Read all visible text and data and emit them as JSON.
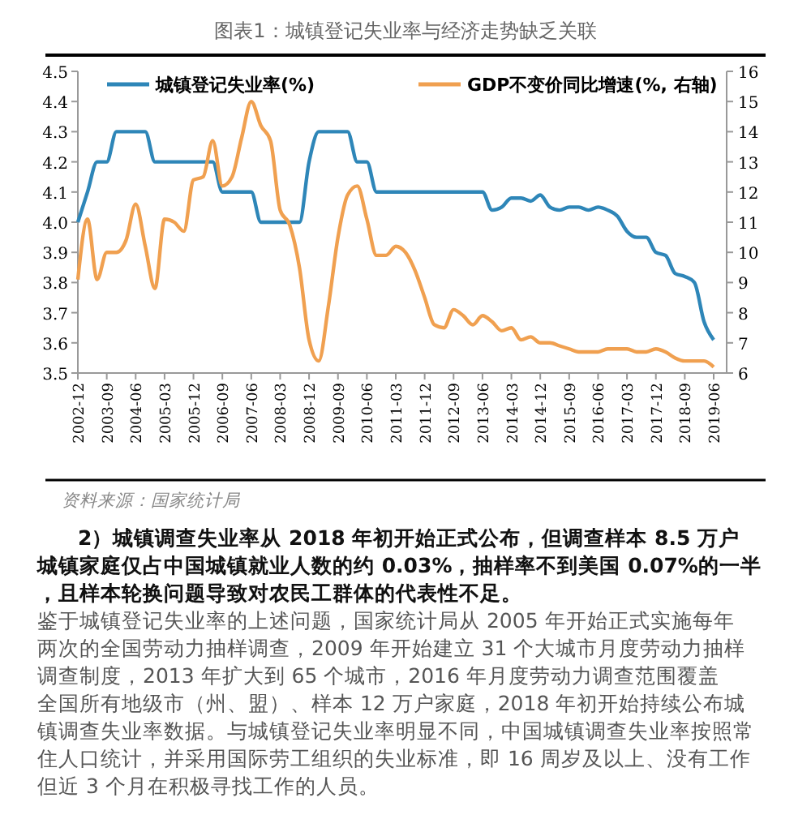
{
  "chart_data": {
    "type": "line",
    "title": "图表1：城镇登记失业率与经济走势缺乏关联",
    "categories": [
      "2002-12",
      null,
      null,
      "2003-09",
      null,
      null,
      "2004-06",
      null,
      null,
      "2005-03",
      null,
      null,
      "2005-12",
      null,
      null,
      "2006-09",
      null,
      null,
      "2007-06",
      null,
      null,
      "2008-03",
      null,
      null,
      "2008-12",
      null,
      null,
      "2009-09",
      null,
      null,
      "2010-06",
      null,
      null,
      "2011-03",
      null,
      null,
      "2011-12",
      null,
      null,
      "2012-09",
      null,
      null,
      "2013-06",
      null,
      null,
      "2014-03",
      null,
      null,
      "2014-12",
      null,
      null,
      "2015-09",
      null,
      null,
      "2016-06",
      null,
      null,
      "2017-03",
      null,
      null,
      "2017-12",
      null,
      null,
      "2018-09",
      null,
      null,
      "2019-06"
    ],
    "series": [
      {
        "name": "城镇登记失业率(%)",
        "color": "#2e86b8",
        "values": [
          4.0,
          4.1,
          4.2,
          4.2,
          4.3,
          4.3,
          4.3,
          4.3,
          4.2,
          4.2,
          4.2,
          4.2,
          4.2,
          4.2,
          4.2,
          4.1,
          4.1,
          4.1,
          4.1,
          4.0,
          4.0,
          4.0,
          4.0,
          4.0,
          4.2,
          4.3,
          4.3,
          4.3,
          4.3,
          4.2,
          4.2,
          4.1,
          4.1,
          4.1,
          4.1,
          4.1,
          4.1,
          4.1,
          4.1,
          4.1,
          4.1,
          4.1,
          4.1,
          4.04,
          4.05,
          4.08,
          4.08,
          4.07,
          4.09,
          4.05,
          4.04,
          4.05,
          4.05,
          4.04,
          4.05,
          4.04,
          4.02,
          3.97,
          3.95,
          3.95,
          3.9,
          3.89,
          3.83,
          3.82,
          3.8,
          3.67,
          3.61
        ]
      },
      {
        "name": "GDP不变价同比增速(%, 右轴)",
        "color": "#f0a050",
        "axis": "y2",
        "values": [
          9.1,
          11.1,
          9.1,
          10.0,
          10.0,
          10.4,
          11.6,
          10.2,
          8.8,
          11.1,
          11.0,
          10.7,
          12.4,
          12.5,
          13.7,
          12.2,
          12.5,
          13.8,
          15.0,
          14.2,
          13.7,
          11.4,
          10.9,
          9.5,
          7.1,
          6.4,
          8.2,
          10.5,
          11.9,
          12.2,
          11.1,
          9.9,
          9.9,
          10.2,
          10.0,
          9.4,
          8.5,
          7.6,
          7.5,
          8.1,
          7.9,
          7.6,
          7.9,
          7.7,
          7.4,
          7.5,
          7.1,
          7.2,
          7.0,
          7.0,
          6.9,
          6.8,
          6.7,
          6.7,
          6.7,
          6.8,
          6.8,
          6.8,
          6.7,
          6.7,
          6.8,
          6.7,
          6.5,
          6.4,
          6.4,
          6.4,
          6.2
        ]
      }
    ],
    "ylim": [
      3.5,
      4.5
    ],
    "yticks": [
      3.5,
      3.6,
      3.7,
      3.8,
      3.9,
      {
        "value": 4.0,
        "label": "4.0"
      },
      4.1,
      4.2,
      4.3,
      4.4,
      4.5
    ],
    "y2lim": [
      6,
      16
    ],
    "y2ticks": [
      6,
      7,
      8,
      9,
      10,
      11,
      12,
      13,
      14,
      15,
      16
    ],
    "legend": "top",
    "grid": false,
    "marker": "none",
    "line_style": "solid",
    "annotations": [
      "资料来源：国家统计局",
      "2）城镇调查失业率从 2018 年初开始正式公布，但调查样本 8.5 万户城镇家庭仅占中国城镇就业人数的约 0.03%，抽样率不到美国 0.07%的一半，且样本轮换问题导致对农民工群体的代表性不足。",
      "鉴于城镇登记失业率的上述问题，国家统计局从 2005 年开始正式实施每年两次的全国劳动力抽样调查，2009 年开始建立 31 个大城市月度劳动力抽样调查制度，2013 年扩大到 65 个城市，2016 年月度劳动力调查范围覆盖全国所有地级市（州、盟）、样本 12 万户家庭，2018 年初开始持续公布城镇调查失业率数据。与城镇登记失业率明显不同，中国城镇调查失业率按照常住人口统计，并采用国际劳工组织的失业标准，即 16 周岁及以上、没有工作但近 3 个月在积极寻找工作的人员。"
    ]
  }
}
